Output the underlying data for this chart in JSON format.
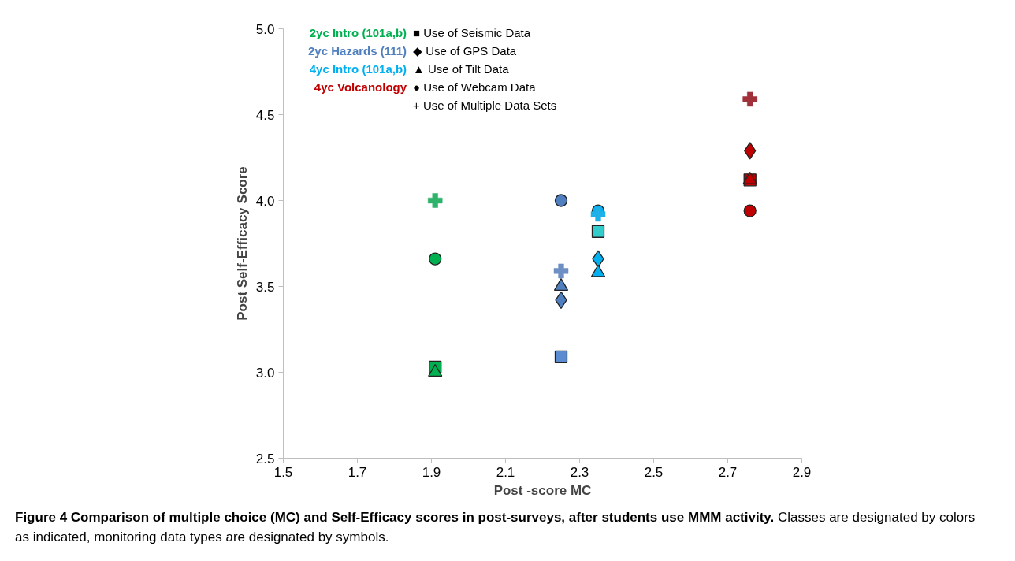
{
  "chart_data": {
    "type": "scatter",
    "xlabel": "Post -score MC",
    "ylabel": "Post Self-Efficacy Score",
    "xlim": [
      1.5,
      2.9
    ],
    "xticks": [
      {
        "value": 1.5,
        "label": "1.5"
      },
      {
        "value": 1.7,
        "label": "1.7"
      },
      {
        "value": 1.9,
        "label": "1.9"
      },
      {
        "value": 2.1,
        "label": "2.1"
      },
      {
        "value": 2.3,
        "label": "2.3"
      },
      {
        "value": 2.5,
        "label": "2.5"
      },
      {
        "value": 2.7,
        "label": "2.7"
      },
      {
        "value": 2.9,
        "label": "2.9"
      }
    ],
    "ylim": [
      2.5,
      5.0
    ],
    "yticks": [
      {
        "value": 2.5,
        "label": "2.5"
      },
      {
        "value": 3.0,
        "label": "3.0"
      },
      {
        "value": 3.5,
        "label": "3.5"
      },
      {
        "value": 4.0,
        "label": "4.0"
      },
      {
        "value": 4.5,
        "label": "4.5"
      },
      {
        "value": 5.0,
        "label": "5.0"
      }
    ],
    "grid": false,
    "legend": "top left",
    "series": [
      {
        "name": "2yc Intro (101a,b)",
        "color": "#00b050",
        "x": [
          1.91,
          null,
          1.91,
          1.91,
          1.91
        ],
        "values": [
          3.03,
          null,
          3.0,
          3.66,
          4.0
        ],
        "colors": [
          "#00b050",
          "#00b050",
          "#00b050",
          "#00b050",
          "#2fb36a"
        ]
      },
      {
        "name": "2yc Hazards (111)",
        "color": "#4f7fbf",
        "x": [
          2.25,
          2.25,
          2.25,
          2.25,
          2.25
        ],
        "values": [
          3.09,
          3.42,
          3.5,
          4.0,
          3.59
        ],
        "colors": [
          "#5b8bd0",
          "#4f7fbf",
          "#4f7fbf",
          "#4f7fbf",
          "#6d8fc4"
        ]
      },
      {
        "name": "4yc Intro (101a,b)",
        "color": "#00b0f0",
        "x": [
          2.35,
          2.35,
          2.35,
          2.35,
          2.35
        ],
        "values": [
          3.82,
          3.66,
          3.58,
          3.94,
          3.92
        ],
        "colors": [
          "#33cccc",
          "#00b0f0",
          "#00b0f0",
          "#00b0f0",
          "#1fb0e8"
        ]
      },
      {
        "name": "4yc Volcanology",
        "color": "#c00000",
        "x": [
          2.76,
          2.76,
          2.76,
          2.76,
          2.76
        ],
        "values": [
          4.12,
          4.29,
          4.12,
          3.94,
          4.59
        ],
        "colors": [
          "#c00000",
          "#c00000",
          "#c00000",
          "#c00000",
          "#a0303a"
        ]
      }
    ],
    "annotations": [
      "■ Use of Seismic Data",
      "◆ Use of GPS Data",
      "▲ Use of Tilt Data",
      "● Use of Webcam Data",
      "+ Use of Multiple Data Sets",
      "Figure 4 Comparison of multiple choice (MC) and Self-Efficacy scores in post-surveys, after students use MMM activity.",
      "Classes are designated by colors as indicated, monitoring data types are designated by symbols."
    ]
  }
}
